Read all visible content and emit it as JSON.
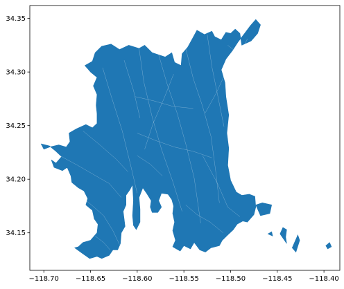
{
  "chart_data": {
    "type": "map",
    "description_visible": "Filled polygon geographic map with thin white internal boundaries",
    "x_ticks": [
      -118.7,
      -118.65,
      -118.6,
      -118.55,
      -118.5,
      -118.45,
      -118.4
    ],
    "x_tick_labels": [
      "−118.70",
      "−118.65",
      "−118.60",
      "−118.55",
      "−118.50",
      "−118.45",
      "−118.40"
    ],
    "y_ticks": [
      34.15,
      34.2,
      34.25,
      34.3,
      34.35
    ],
    "y_tick_labels": [
      "34.15",
      "34.20",
      "34.25",
      "34.30",
      "34.35"
    ],
    "xlim": [
      -118.715,
      -118.383
    ],
    "ylim": [
      34.115,
      34.362
    ],
    "grid": false,
    "legend": "none",
    "fill_color": "#1f77b4",
    "boundary_color": "#ffffff",
    "main_region": [
      [
        -118.703,
        34.233
      ],
      [
        -118.694,
        34.231
      ],
      [
        -118.687,
        34.226
      ],
      [
        -118.681,
        34.221
      ],
      [
        -118.687,
        34.215
      ],
      [
        -118.692,
        34.218
      ],
      [
        -118.689,
        34.211
      ],
      [
        -118.68,
        34.208
      ],
      [
        -118.675,
        34.211
      ],
      [
        -118.671,
        34.203
      ],
      [
        -118.67,
        34.197
      ],
      [
        -118.663,
        34.192
      ],
      [
        -118.657,
        34.189
      ],
      [
        -118.653,
        34.182
      ],
      [
        -118.655,
        34.176
      ],
      [
        -118.648,
        34.171
      ],
      [
        -118.646,
        34.163
      ],
      [
        -118.642,
        34.158
      ],
      [
        -118.643,
        34.15
      ],
      [
        -118.65,
        34.143
      ],
      [
        -118.658,
        34.141
      ],
      [
        -118.663,
        34.137
      ],
      [
        -118.667,
        34.136
      ],
      [
        -118.659,
        34.131
      ],
      [
        -118.651,
        34.126
      ],
      [
        -118.643,
        34.128
      ],
      [
        -118.638,
        34.126
      ],
      [
        -118.63,
        34.129
      ],
      [
        -118.626,
        34.134
      ],
      [
        -118.621,
        34.134
      ],
      [
        -118.618,
        34.14
      ],
      [
        -118.617,
        34.15
      ],
      [
        -118.613,
        34.156
      ],
      [
        -118.614,
        34.163
      ],
      [
        -118.615,
        34.17
      ],
      [
        -118.612,
        34.176
      ],
      [
        -118.612,
        34.185
      ],
      [
        -118.608,
        34.19
      ],
      [
        -118.605,
        34.195
      ],
      [
        -118.604,
        34.18
      ],
      [
        -118.605,
        34.166
      ],
      [
        -118.604,
        34.157
      ],
      [
        -118.601,
        34.153
      ],
      [
        -118.597,
        34.16
      ],
      [
        -118.597,
        34.172
      ],
      [
        -118.598,
        34.183
      ],
      [
        -118.594,
        34.192
      ],
      [
        -118.59,
        34.187
      ],
      [
        -118.585,
        34.18
      ],
      [
        -118.586,
        34.174
      ],
      [
        -118.584,
        34.169
      ],
      [
        -118.578,
        34.169
      ],
      [
        -118.574,
        34.174
      ],
      [
        -118.577,
        34.18
      ],
      [
        -118.574,
        34.187
      ],
      [
        -118.567,
        34.186
      ],
      [
        -118.563,
        34.181
      ],
      [
        -118.561,
        34.175
      ],
      [
        -118.562,
        34.168
      ],
      [
        -118.56,
        34.16
      ],
      [
        -118.562,
        34.152
      ],
      [
        -118.559,
        34.143
      ],
      [
        -118.562,
        34.137
      ],
      [
        -118.554,
        34.133
      ],
      [
        -118.55,
        34.138
      ],
      [
        -118.543,
        34.135
      ],
      [
        -118.539,
        34.141
      ],
      [
        -118.533,
        34.134
      ],
      [
        -118.527,
        34.132
      ],
      [
        -118.521,
        34.136
      ],
      [
        -118.512,
        34.138
      ],
      [
        -118.509,
        34.143
      ],
      [
        -118.503,
        34.148
      ],
      [
        -118.497,
        34.153
      ],
      [
        -118.493,
        34.158
      ],
      [
        -118.487,
        34.161
      ],
      [
        -118.482,
        34.16
      ],
      [
        -118.475,
        34.167
      ],
      [
        -118.473,
        34.174
      ],
      [
        -118.474,
        34.184
      ],
      [
        -118.48,
        34.186
      ],
      [
        -118.488,
        34.185
      ],
      [
        -118.494,
        34.188
      ],
      [
        -118.5,
        34.199
      ],
      [
        -118.503,
        34.213
      ],
      [
        -118.502,
        34.229
      ],
      [
        -118.504,
        34.243
      ],
      [
        -118.502,
        34.26
      ],
      [
        -118.505,
        34.277
      ],
      [
        -118.506,
        34.29
      ],
      [
        -118.51,
        34.302
      ],
      [
        -118.505,
        34.312
      ],
      [
        -118.498,
        34.32
      ],
      [
        -118.492,
        34.328
      ],
      [
        -118.485,
        34.336
      ],
      [
        -118.479,
        34.343
      ],
      [
        -118.473,
        34.349
      ],
      [
        -118.468,
        34.344
      ],
      [
        -118.471,
        34.336
      ],
      [
        -118.478,
        34.329
      ],
      [
        -118.488,
        34.325
      ],
      [
        -118.49,
        34.336
      ],
      [
        -118.495,
        34.34
      ],
      [
        -118.5,
        34.336
      ],
      [
        -118.505,
        34.337
      ],
      [
        -118.51,
        34.33
      ],
      [
        -118.517,
        34.333
      ],
      [
        -118.52,
        34.338
      ],
      [
        -118.528,
        34.335
      ],
      [
        -118.536,
        34.339
      ],
      [
        -118.541,
        34.331
      ],
      [
        -118.546,
        34.323
      ],
      [
        -118.552,
        34.317
      ],
      [
        -118.553,
        34.306
      ],
      [
        -118.56,
        34.309
      ],
      [
        -118.563,
        34.318
      ],
      [
        -118.57,
        34.314
      ],
      [
        -118.577,
        34.316
      ],
      [
        -118.584,
        34.318
      ],
      [
        -118.592,
        34.325
      ],
      [
        -118.598,
        34.322
      ],
      [
        -118.609,
        34.325
      ],
      [
        -118.619,
        34.321
      ],
      [
        -118.628,
        34.326
      ],
      [
        -118.638,
        34.324
      ],
      [
        -118.645,
        34.318
      ],
      [
        -118.648,
        34.31
      ],
      [
        -118.656,
        34.306
      ],
      [
        -118.65,
        34.3
      ],
      [
        -118.643,
        34.295
      ],
      [
        -118.647,
        34.287
      ],
      [
        -118.643,
        34.279
      ],
      [
        -118.644,
        34.269
      ],
      [
        -118.643,
        34.261
      ],
      [
        -118.643,
        34.252
      ],
      [
        -118.648,
        34.248
      ],
      [
        -118.655,
        34.251
      ],
      [
        -118.665,
        34.247
      ],
      [
        -118.673,
        34.243
      ],
      [
        -118.672,
        34.235
      ],
      [
        -118.676,
        34.23
      ],
      [
        -118.684,
        34.232
      ],
      [
        -118.694,
        34.23
      ],
      [
        -118.7,
        34.228
      ],
      [
        -118.703,
        34.233
      ]
    ],
    "islands": [
      [
        [
          -118.468,
          34.166
        ],
        [
          -118.473,
          34.176
        ],
        [
          -118.466,
          34.178
        ],
        [
          -118.456,
          34.176
        ],
        [
          -118.458,
          34.168
        ]
      ],
      [
        [
          -118.447,
          34.149
        ],
        [
          -118.444,
          34.155
        ],
        [
          -118.44,
          34.153
        ],
        [
          -118.441,
          34.146
        ],
        [
          -118.44,
          34.14
        ]
      ],
      [
        [
          -118.432,
          34.14
        ],
        [
          -118.428,
          34.148
        ],
        [
          -118.426,
          34.143
        ],
        [
          -118.43,
          34.132
        ],
        [
          -118.434,
          34.136
        ]
      ],
      [
        [
          -118.398,
          34.138
        ],
        [
          -118.394,
          34.141
        ],
        [
          -118.392,
          34.137
        ],
        [
          -118.396,
          34.135
        ]
      ],
      [
        [
          -118.46,
          34.149
        ],
        [
          -118.456,
          34.151
        ],
        [
          -118.455,
          34.147
        ]
      ],
      [
        [
          -118.529,
          34.327
        ],
        [
          -118.527,
          34.328
        ],
        [
          -118.526,
          34.326
        ]
      ]
    ],
    "internal_boundaries": [
      [
        [
          -118.637,
          34.304
        ],
        [
          -118.628,
          34.278
        ],
        [
          -118.616,
          34.245
        ],
        [
          -118.607,
          34.213
        ],
        [
          -118.6,
          34.187
        ]
      ],
      [
        [
          -118.598,
          34.322
        ],
        [
          -118.593,
          34.291
        ],
        [
          -118.584,
          34.258
        ],
        [
          -118.574,
          34.228
        ],
        [
          -118.562,
          34.198
        ],
        [
          -118.552,
          34.17
        ]
      ],
      [
        [
          -118.577,
          34.316
        ],
        [
          -118.568,
          34.289
        ],
        [
          -118.557,
          34.261
        ],
        [
          -118.548,
          34.233
        ],
        [
          -118.539,
          34.201
        ],
        [
          -118.532,
          34.159
        ]
      ],
      [
        [
          -118.548,
          34.322
        ],
        [
          -118.54,
          34.294
        ],
        [
          -118.53,
          34.268
        ],
        [
          -118.521,
          34.24
        ],
        [
          -118.516,
          34.208
        ],
        [
          -118.512,
          34.178
        ]
      ],
      [
        [
          -118.525,
          34.335
        ],
        [
          -118.52,
          34.305
        ],
        [
          -118.514,
          34.279
        ],
        [
          -118.507,
          34.249
        ]
      ],
      [
        [
          -118.658,
          34.245
        ],
        [
          -118.64,
          34.232
        ],
        [
          -118.623,
          34.219
        ],
        [
          -118.61,
          34.207
        ]
      ],
      [
        [
          -118.683,
          34.222
        ],
        [
          -118.664,
          34.213
        ],
        [
          -118.646,
          34.204
        ],
        [
          -118.63,
          34.196
        ],
        [
          -118.617,
          34.183
        ]
      ],
      [
        [
          -118.663,
          34.186
        ],
        [
          -118.649,
          34.176
        ],
        [
          -118.636,
          34.166
        ],
        [
          -118.626,
          34.152
        ],
        [
          -118.619,
          34.139
        ]
      ],
      [
        [
          -118.645,
          34.147
        ],
        [
          -118.636,
          34.141
        ],
        [
          -118.629,
          34.134
        ]
      ],
      [
        [
          -118.614,
          34.311
        ],
        [
          -118.604,
          34.283
        ],
        [
          -118.597,
          34.257
        ]
      ],
      [
        [
          -118.561,
          34.298
        ],
        [
          -118.571,
          34.276
        ],
        [
          -118.583,
          34.252
        ],
        [
          -118.592,
          34.228
        ]
      ],
      [
        [
          -118.505,
          34.3
        ],
        [
          -118.515,
          34.281
        ],
        [
          -118.527,
          34.262
        ]
      ],
      [
        [
          -118.6,
          34.243
        ],
        [
          -118.58,
          34.236
        ],
        [
          -118.56,
          34.23
        ],
        [
          -118.54,
          34.226
        ],
        [
          -118.52,
          34.22
        ]
      ],
      [
        [
          -118.602,
          34.277
        ],
        [
          -118.582,
          34.273
        ],
        [
          -118.562,
          34.268
        ],
        [
          -118.54,
          34.266
        ]
      ],
      [
        [
          -118.548,
          34.176
        ],
        [
          -118.536,
          34.167
        ],
        [
          -118.522,
          34.16
        ],
        [
          -118.508,
          34.15
        ]
      ],
      [
        [
          -118.573,
          34.203
        ],
        [
          -118.586,
          34.214
        ],
        [
          -118.6,
          34.222
        ]
      ],
      [
        [
          -118.503,
          34.325
        ],
        [
          -118.49,
          34.316
        ],
        [
          -118.482,
          34.331
        ]
      ],
      [
        [
          -118.53,
          34.222
        ],
        [
          -118.514,
          34.196
        ],
        [
          -118.503,
          34.174
        ],
        [
          -118.49,
          34.165
        ]
      ]
    ]
  }
}
